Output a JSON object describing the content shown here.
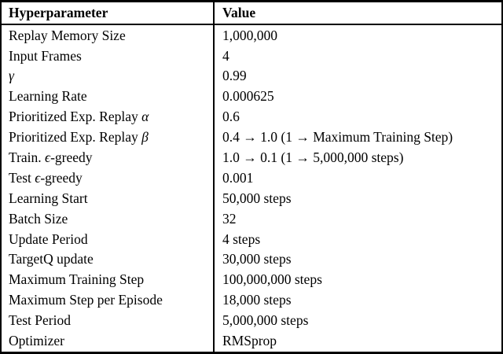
{
  "colors": {
    "text": "#000000",
    "background": "#ffffff",
    "border": "#000000"
  },
  "table": {
    "header": {
      "param": "Hyperparameter",
      "value": "Value"
    },
    "rows": [
      {
        "pre": "Replay Memory Size",
        "value": "1,000,000"
      },
      {
        "pre": "Input Frames",
        "value": "4"
      },
      {
        "sym": "γ",
        "value": "0.99"
      },
      {
        "pre": "Learning Rate",
        "value": "0.000625"
      },
      {
        "pre": "Prioritized Exp. Replay ",
        "sym": "α",
        "value": "0.6"
      },
      {
        "pre": "Prioritized Exp. Replay ",
        "sym": "β",
        "value": "0.4 → 1.0 (1 → Maximum Training Step)"
      },
      {
        "pre": "Train. ",
        "sym": "ϵ",
        "post": "-greedy",
        "value": "1.0 → 0.1 (1 → 5,000,000 steps)"
      },
      {
        "pre": "Test ",
        "sym": "ϵ",
        "post": "-greedy",
        "value": "0.001"
      },
      {
        "pre": "Learning Start",
        "value": "50,000 steps"
      },
      {
        "pre": "Batch Size",
        "value": "32"
      },
      {
        "pre": "Update Period",
        "value": "4 steps"
      },
      {
        "pre": "TargetQ update",
        "value": "30,000 steps"
      },
      {
        "pre": "Maximum Training Step",
        "value": "100,000,000 steps"
      },
      {
        "pre": "Maximum Step per Episode",
        "value": "18,000 steps"
      },
      {
        "pre": "Test Period",
        "value": "5,000,000 steps"
      },
      {
        "pre": "Optimizer",
        "value": "RMSprop"
      }
    ]
  }
}
